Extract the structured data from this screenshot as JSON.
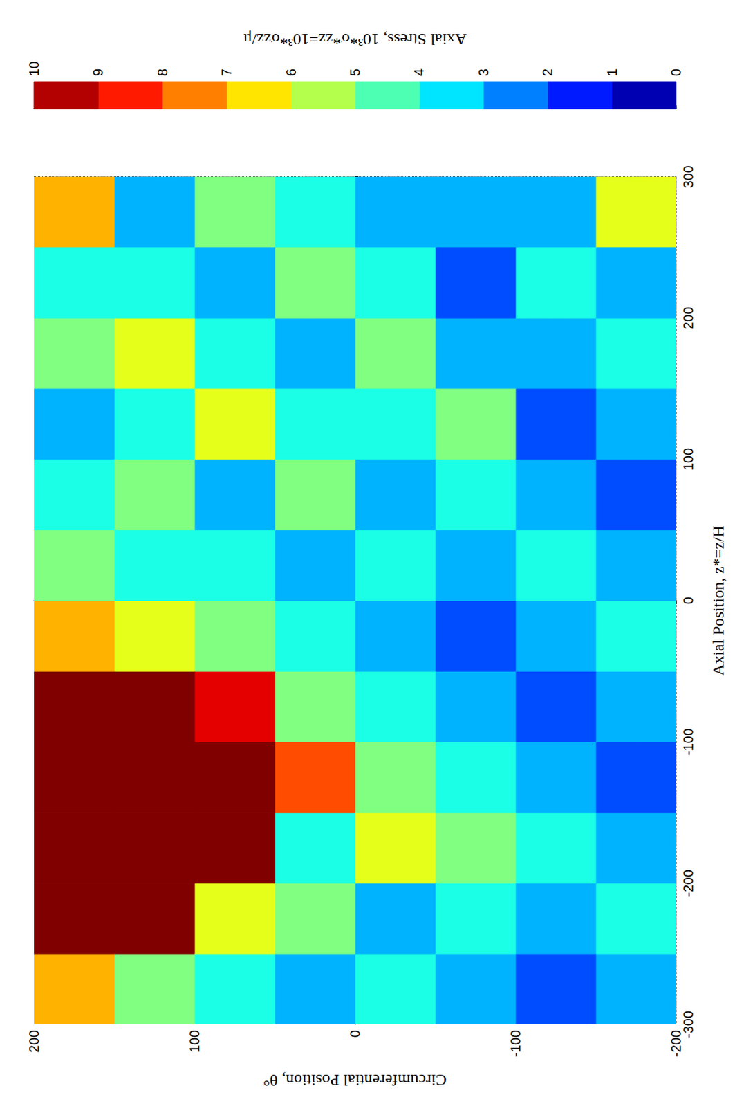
{
  "chart_data": {
    "type": "heatmap",
    "x_label": "Axial Position, z*=z/H",
    "y_label": "Circumferential Position, θ°",
    "z_label": "Axial Stress, 10³*σ*zz=10³*σzz/μ",
    "x": [
      -275,
      -225,
      -175,
      -125,
      -75,
      -25,
      25,
      75,
      125,
      175,
      225,
      275
    ],
    "y": [
      -175,
      -125,
      -75,
      -25,
      25,
      75,
      125,
      175
    ],
    "values": [
      [
        3,
        4,
        3,
        2,
        3,
        4,
        3,
        2,
        3,
        4,
        3,
        6
      ],
      [
        2,
        3,
        4,
        3,
        2,
        3,
        4,
        3,
        2,
        3,
        4,
        3
      ],
      [
        3,
        4,
        5,
        4,
        3,
        2,
        3,
        4,
        5,
        3,
        2,
        3
      ],
      [
        4,
        3,
        6,
        5,
        4,
        3,
        4,
        3,
        4,
        5,
        4,
        3
      ],
      [
        3,
        5,
        4,
        8,
        5,
        4,
        3,
        5,
        4,
        3,
        5,
        4
      ],
      [
        4,
        6,
        11,
        13,
        9,
        5,
        4,
        3,
        6,
        4,
        3,
        5
      ],
      [
        5,
        12,
        15,
        14,
        12,
        6,
        4,
        5,
        4,
        6,
        4,
        3
      ],
      [
        7,
        13,
        16,
        15,
        12,
        7,
        5,
        4,
        3,
        5,
        4,
        7
      ]
    ],
    "xlim": [
      -300,
      300
    ],
    "xticks": [
      -300,
      -200,
      -100,
      0,
      100,
      200,
      300
    ],
    "ylim": [
      -200,
      200
    ],
    "yticks": [
      -200,
      -100,
      0,
      100,
      200
    ],
    "colorbar": {
      "range": [
        0,
        10
      ],
      "ticks": [
        0,
        1,
        2,
        3,
        4,
        5,
        6,
        7,
        8,
        9,
        10
      ]
    },
    "grid": true
  }
}
